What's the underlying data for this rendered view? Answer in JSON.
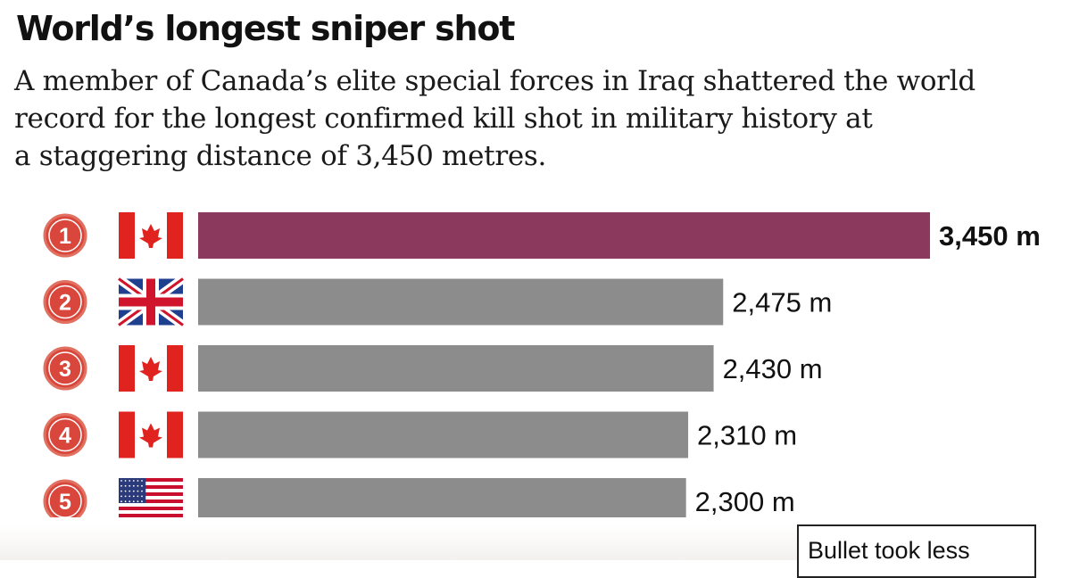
{
  "title": "World’s longest sniper shot",
  "subtitle": "A member of Canada’s elite special forces in Iraq shattered the world\nrecord for the longest confirmed kill shot in military history at\na staggering distance of 3,450 metres.",
  "callout": "Bullet took less",
  "colors": {
    "highlight_bar": "#8b3a5e",
    "bar": "#8c8c8c",
    "rank_circle": "#d9473c",
    "rank_ring": "#e07060",
    "canada_red": "#e0231f"
  },
  "chart_data": {
    "type": "bar",
    "orientation": "horizontal",
    "title": "World’s longest sniper shot",
    "categories": [
      "1",
      "2",
      "3",
      "4",
      "5"
    ],
    "countries": [
      "canada-flag",
      "uk-flag",
      "canada-flag",
      "canada-flag",
      "usa-flag"
    ],
    "values": [
      3450,
      2475,
      2430,
      2310,
      2300
    ],
    "value_labels": [
      "3,450 m",
      "2,475 m",
      "2,430 m",
      "2,310 m",
      "2,300 m"
    ],
    "unit": "m",
    "highlight_index": 0,
    "grid": false
  }
}
